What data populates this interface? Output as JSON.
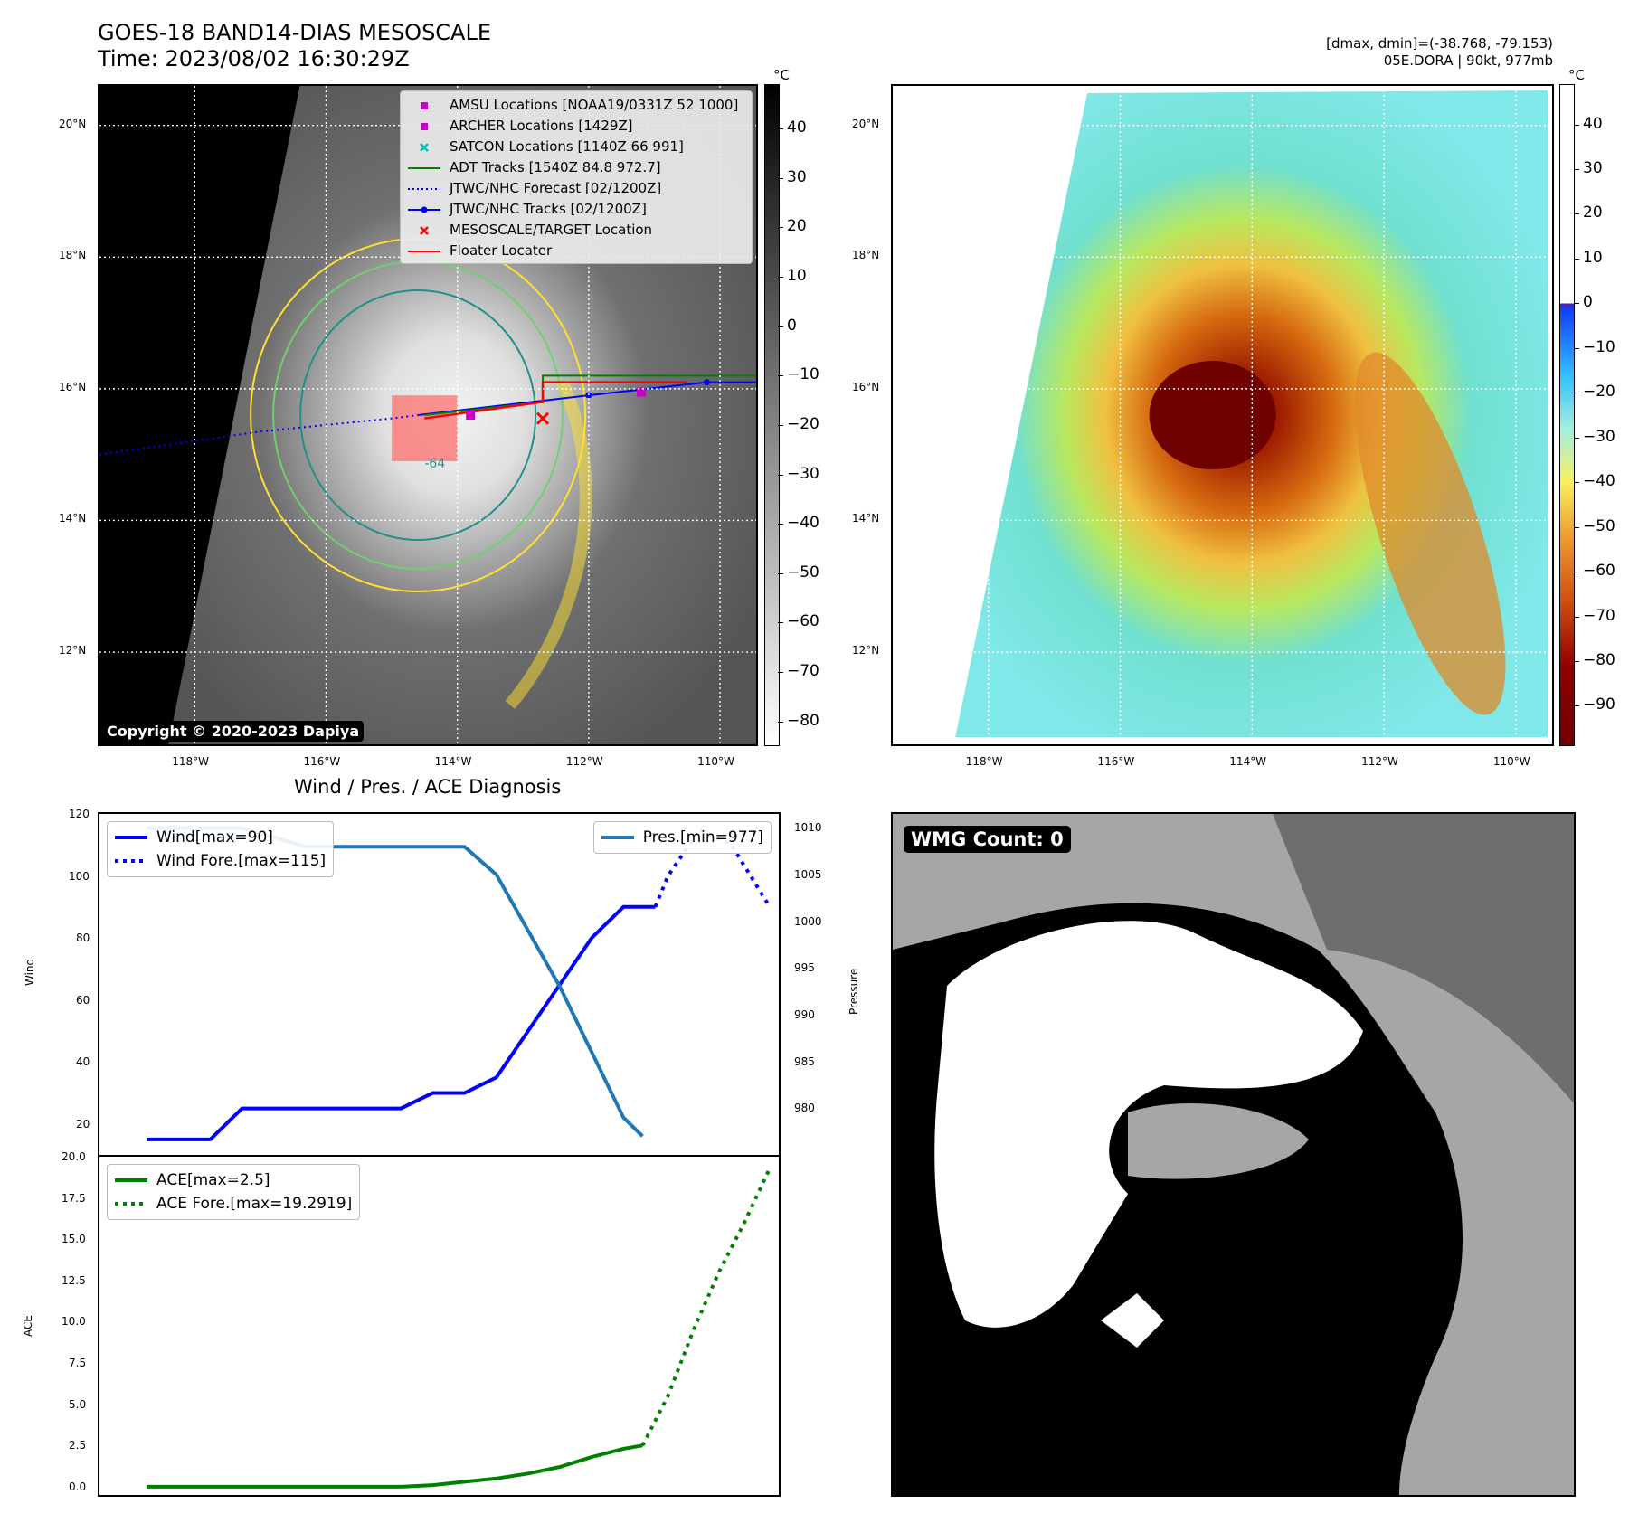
{
  "title": {
    "line1": "GOES-18 BAND14-DIAS MESOSCALE",
    "line2": "Time: 2023/08/02 16:30:29Z"
  },
  "info": {
    "line1": "[dmax, dmin]=(-38.768, -79.153)",
    "line2": "05E.DORA | 90kt, 977mb"
  },
  "map_axes": {
    "lat_labels": [
      "20°N",
      "18°N",
      "16°N",
      "14°N",
      "12°N"
    ],
    "lon_labels": [
      "118°W",
      "116°W",
      "114°W",
      "112°W",
      "110°W"
    ],
    "lat_range": [
      10.6,
      20.6
    ],
    "lon_range": [
      -119.45,
      -109.45
    ]
  },
  "colorbar_gray": {
    "unit": "°C",
    "ticks": [
      "40",
      "30",
      "20",
      "10",
      "0",
      "−10",
      "−20",
      "−30",
      "−40",
      "−50",
      "−60",
      "−70",
      "−80"
    ],
    "range": [
      -85,
      49
    ]
  },
  "colorbar_color": {
    "unit": "°C",
    "ticks": [
      "40",
      "30",
      "20",
      "10",
      "0",
      "−10",
      "−20",
      "−30",
      "−40",
      "−50",
      "−60",
      "−70",
      "−80",
      "−90"
    ],
    "range": [
      -99,
      49
    ]
  },
  "map_legend": {
    "items": [
      {
        "label": "AMSU Locations [NOAA19/0331Z 52 1000]",
        "symbol": "square",
        "color": "#cc00cc"
      },
      {
        "label": "ARCHER Locations [1429Z]",
        "symbol": "square",
        "color": "#cc00cc"
      },
      {
        "label": "SATCON Locations [1140Z 66 991]",
        "symbol": "x",
        "color": "#00bfbf"
      },
      {
        "label": "ADT Tracks [1540Z 84.8 972.7]",
        "symbol": "line",
        "color": "#008000"
      },
      {
        "label": "JTWC/NHC Forecast [02/1200Z]",
        "symbol": "dotted",
        "color": "#0000ff"
      },
      {
        "label": "JTWC/NHC Tracks [02/1200Z]",
        "symbol": "line-dot",
        "color": "#0000ff"
      },
      {
        "label": "MESOSCALE/TARGET Location",
        "symbol": "x",
        "color": "#ff0000"
      },
      {
        "label": "Floater Locater",
        "symbol": "line",
        "color": "#ff0000"
      }
    ]
  },
  "copyright": "Copyright © 2020-2023 Dapiya",
  "contour_label": "-64",
  "diagnosis": {
    "title": "Wind / Pres. / ACE Diagnosis",
    "wind_ylabel": "Wind",
    "pres_ylabel": "Pressure",
    "ace_ylabel": "ACE",
    "wind_legend": [
      "Wind[max=90]",
      "Wind Fore.[max=115]"
    ],
    "pres_legend": "Pres.[min=977]",
    "ace_legend": [
      "ACE[max=2.5]",
      "ACE Fore.[max=19.2919]"
    ],
    "wind_ticks": [
      "120",
      "100",
      "80",
      "60",
      "40",
      "20"
    ],
    "pres_ticks": [
      "1010",
      "1005",
      "1000",
      "995",
      "990",
      "985",
      "980"
    ],
    "ace_ticks": [
      "20.0",
      "17.5",
      "15.0",
      "12.5",
      "10.0",
      "7.5",
      "5.0",
      "2.5",
      "0.0"
    ]
  },
  "wmg": {
    "label": "WMG Count: 0"
  },
  "chart_data": [
    {
      "type": "line",
      "name": "wind",
      "ylim": [
        10,
        120
      ],
      "xlim": [
        -6,
        98
      ],
      "series": [
        {
          "name": "Wind[max=90]",
          "color": "#0000ff",
          "style": "solid",
          "x": [
            0,
            5,
            10,
            15,
            20,
            25,
            30,
            35,
            40,
            45,
            50,
            55,
            60,
            65,
            70,
            75,
            80
          ],
          "y": [
            15,
            15,
            15,
            25,
            25,
            25,
            25,
            25,
            25,
            30,
            30,
            35,
            50,
            65,
            80,
            90,
            90
          ]
        },
        {
          "name": "Wind Fore.[max=115]",
          "color": "#0000ff",
          "style": "dotted",
          "x": [
            80,
            82,
            87,
            92,
            95,
            98
          ],
          "y": [
            90,
            100,
            115,
            110,
            100,
            90
          ]
        }
      ]
    },
    {
      "type": "line",
      "name": "pressure",
      "ylim": [
        975,
        1011.5
      ],
      "series": [
        {
          "name": "Pres.[min=977]",
          "color": "#1f77b4",
          "style": "solid",
          "x": [
            0,
            5,
            10,
            15,
            20,
            25,
            30,
            35,
            40,
            45,
            50,
            55,
            60,
            65,
            70,
            75,
            78
          ],
          "y": [
            1010,
            1010,
            1010,
            1010,
            1009,
            1008,
            1008,
            1008,
            1008,
            1008,
            1008,
            1005,
            999,
            993,
            986,
            979,
            977
          ]
        }
      ]
    },
    {
      "type": "line",
      "name": "ace",
      "ylim": [
        -0.5,
        20
      ],
      "series": [
        {
          "name": "ACE[max=2.5]",
          "color": "#008000",
          "style": "solid",
          "x": [
            0,
            40,
            45,
            50,
            55,
            60,
            65,
            70,
            75,
            78
          ],
          "y": [
            0,
            0,
            0.1,
            0.3,
            0.5,
            0.8,
            1.2,
            1.8,
            2.3,
            2.5
          ]
        },
        {
          "name": "ACE Fore.[max=19.2919]",
          "color": "#008000",
          "style": "dotted",
          "x": [
            78,
            82,
            86,
            90,
            94,
            98
          ],
          "y": [
            2.5,
            5.5,
            9.5,
            13,
            16,
            19.29
          ]
        }
      ]
    }
  ]
}
